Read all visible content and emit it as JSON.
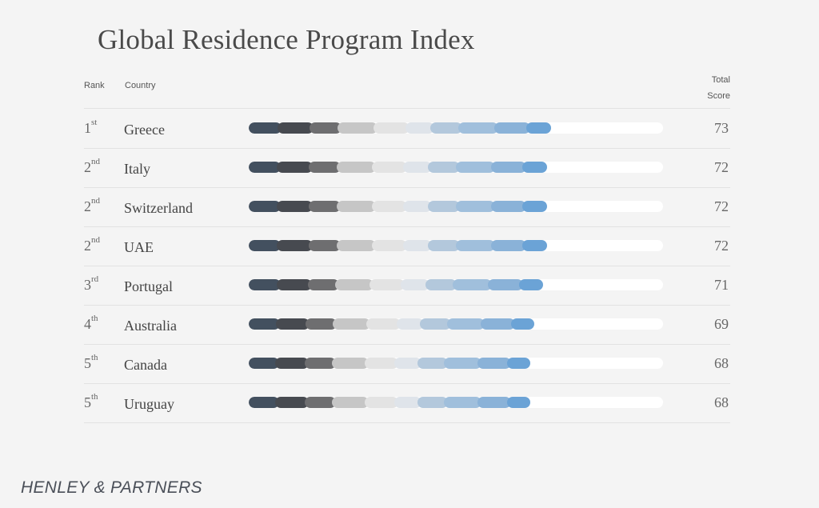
{
  "title": "Global Residence Program Index",
  "headers": {
    "rank": "Rank",
    "country": "Country",
    "score_line1": "Total",
    "score_line2": "Score"
  },
  "footer": "HENLEY & PARTNERS",
  "colors": [
    "#43505f",
    "#474a50",
    "#6e6e70",
    "#c6c6c6",
    "#e3e3e3",
    "#dfe4ea",
    "#b3c8dc",
    "#a0bfdc",
    "#8ab2d8",
    "#6ba3d6"
  ],
  "chart_data": {
    "type": "bar",
    "title": "Global Residence Program Index",
    "xlabel": "",
    "ylabel": "Total Score",
    "xlim": [
      0,
      100
    ],
    "rows": [
      {
        "rank_num": "1",
        "rank_suffix": "st",
        "country": "Greece",
        "score": "73",
        "value": 73
      },
      {
        "rank_num": "2",
        "rank_suffix": "nd",
        "country": "Italy",
        "score": "72",
        "value": 72
      },
      {
        "rank_num": "2",
        "rank_suffix": "nd",
        "country": "Switzerland",
        "score": "72",
        "value": 72
      },
      {
        "rank_num": "2",
        "rank_suffix": "nd",
        "country": "UAE",
        "score": "72",
        "value": 72
      },
      {
        "rank_num": "3",
        "rank_suffix": "rd",
        "country": "Portugal",
        "score": "71",
        "value": 71
      },
      {
        "rank_num": "4",
        "rank_suffix": "th",
        "country": "Australia",
        "score": "69",
        "value": 69
      },
      {
        "rank_num": "5",
        "rank_suffix": "th",
        "country": "Canada",
        "score": "68",
        "value": 68
      },
      {
        "rank_num": "5",
        "rank_suffix": "th",
        "country": "Uruguay",
        "score": "68",
        "value": 68
      }
    ]
  }
}
